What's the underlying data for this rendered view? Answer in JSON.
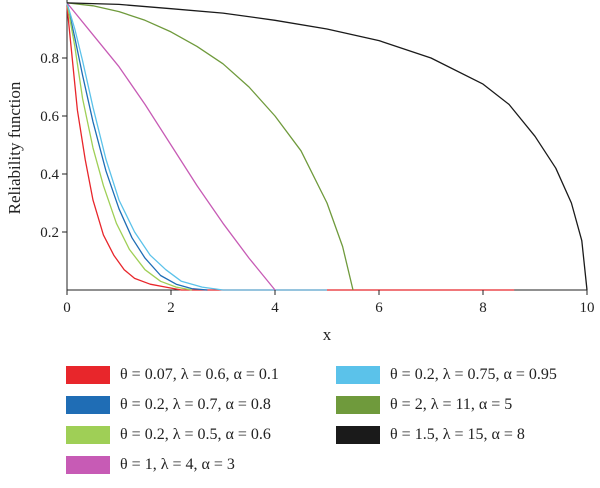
{
  "chart_data": {
    "type": "line",
    "title": "",
    "xlabel": "x",
    "ylabel": "Reliability function",
    "xlim": [
      0,
      10
    ],
    "ylim": [
      0,
      1
    ],
    "x_ticks": [
      "0",
      "2",
      "4",
      "6",
      "8",
      "10"
    ],
    "y_ticks": [
      "0.2",
      "0.4",
      "0.6",
      "0.8"
    ],
    "grid": false,
    "legend_position": "bottom",
    "series": [
      {
        "name": "θ = 0.07, λ = 0.6, α = 0.1",
        "color": "#e8262b",
        "x": [
          0,
          0.1,
          0.2,
          0.35,
          0.5,
          0.7,
          0.9,
          1.1,
          1.3,
          1.6,
          1.9,
          2.2,
          8.6
        ],
        "y": [
          0.98,
          0.8,
          0.62,
          0.45,
          0.31,
          0.19,
          0.12,
          0.07,
          0.04,
          0.02,
          0.01,
          0.0,
          0.0
        ]
      },
      {
        "name": "θ = 0.2, λ = 0.7, α = 0.8",
        "color": "#1f6db5",
        "x": [
          0,
          0.15,
          0.3,
          0.5,
          0.75,
          1.0,
          1.25,
          1.5,
          1.8,
          2.1,
          2.4,
          2.7
        ],
        "y": [
          0.99,
          0.87,
          0.74,
          0.58,
          0.41,
          0.28,
          0.18,
          0.11,
          0.05,
          0.02,
          0.005,
          0.0
        ]
      },
      {
        "name": "θ = 0.2, λ = 0.5, α = 0.6",
        "color": "#9fcf56",
        "x": [
          0,
          0.15,
          0.3,
          0.5,
          0.7,
          0.95,
          1.2,
          1.5,
          1.8,
          2.1,
          2.4
        ],
        "y": [
          0.99,
          0.84,
          0.66,
          0.49,
          0.36,
          0.23,
          0.14,
          0.07,
          0.03,
          0.01,
          0.0
        ]
      },
      {
        "name": "θ = 0.2, λ = 0.75, α = 0.95",
        "color": "#5bc2ea",
        "x": [
          0,
          0.15,
          0.3,
          0.5,
          0.75,
          1.0,
          1.3,
          1.6,
          1.9,
          2.2,
          2.6,
          3.0,
          5.0
        ],
        "y": [
          0.99,
          0.9,
          0.79,
          0.63,
          0.45,
          0.31,
          0.2,
          0.12,
          0.07,
          0.03,
          0.01,
          0.0,
          0.0
        ]
      },
      {
        "name": "θ = 1, λ = 4, α = 3",
        "color": "#c75bb5",
        "x": [
          0,
          0.5,
          1.0,
          1.5,
          2.0,
          2.5,
          3.0,
          3.5,
          4.0
        ],
        "y": [
          0.99,
          0.88,
          0.77,
          0.64,
          0.5,
          0.36,
          0.23,
          0.11,
          0.0
        ]
      },
      {
        "name": "θ = 2, λ = 11, α = 5",
        "color": "#6f9a3c",
        "x": [
          0,
          0.5,
          1.0,
          1.5,
          2.0,
          2.5,
          3.0,
          3.5,
          4.0,
          4.5,
          5.0,
          5.3,
          5.5
        ],
        "y": [
          0.99,
          0.98,
          0.96,
          0.93,
          0.89,
          0.84,
          0.78,
          0.7,
          0.6,
          0.48,
          0.3,
          0.15,
          0.0
        ]
      },
      {
        "name": "θ = 1.5, λ = 15, α = 8",
        "color": "#1a1a1a",
        "x": [
          0,
          1,
          2,
          3,
          4,
          5,
          6,
          7,
          8,
          8.5,
          9,
          9.4,
          9.7,
          9.9,
          10
        ],
        "y": [
          0.99,
          0.985,
          0.97,
          0.955,
          0.93,
          0.9,
          0.86,
          0.8,
          0.71,
          0.64,
          0.53,
          0.42,
          0.3,
          0.17,
          0.0
        ]
      }
    ]
  },
  "legend_layout": [
    {
      "series": 0,
      "col": 0,
      "row": 0
    },
    {
      "series": 3,
      "col": 1,
      "row": 0
    },
    {
      "series": 1,
      "col": 0,
      "row": 1
    },
    {
      "series": 5,
      "col": 1,
      "row": 1
    },
    {
      "series": 2,
      "col": 0,
      "row": 2
    },
    {
      "series": 6,
      "col": 1,
      "row": 2
    },
    {
      "series": 4,
      "col": 0,
      "row": 3
    }
  ]
}
